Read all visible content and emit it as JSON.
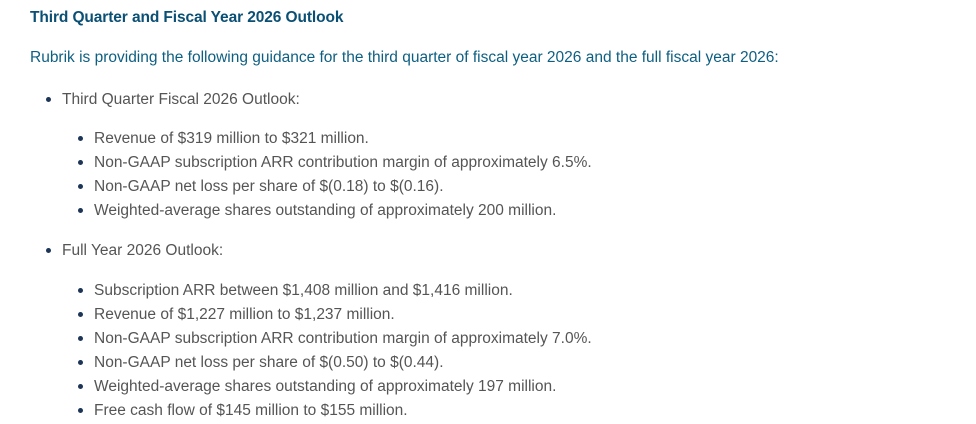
{
  "title": "Third Quarter and Fiscal Year 2026 Outlook",
  "intro": "Rubrik is providing the following guidance for the third quarter of fiscal year 2026 and the full fiscal year 2026:",
  "sections": [
    {
      "label": "Third Quarter Fiscal 2026 Outlook:",
      "items": [
        "Revenue of $319 million to $321 million.",
        "Non-GAAP subscription ARR contribution margin of approximately 6.5%.",
        "Non-GAAP net loss per share of $(0.18) to $(0.16).",
        "Weighted-average shares outstanding of approximately 200 million."
      ]
    },
    {
      "label": "Full Year 2026 Outlook:",
      "items": [
        "Subscription ARR between $1,408 million and $1,416 million.",
        "Revenue of $1,227 million to $1,237 million.",
        "Non-GAAP subscription ARR contribution margin of approximately 7.0%.",
        "Non-GAAP net loss per share of $(0.50) to $(0.44).",
        "Weighted-average shares outstanding of approximately 197 million.",
        "Free cash flow of $145 million to $155 million."
      ]
    }
  ]
}
